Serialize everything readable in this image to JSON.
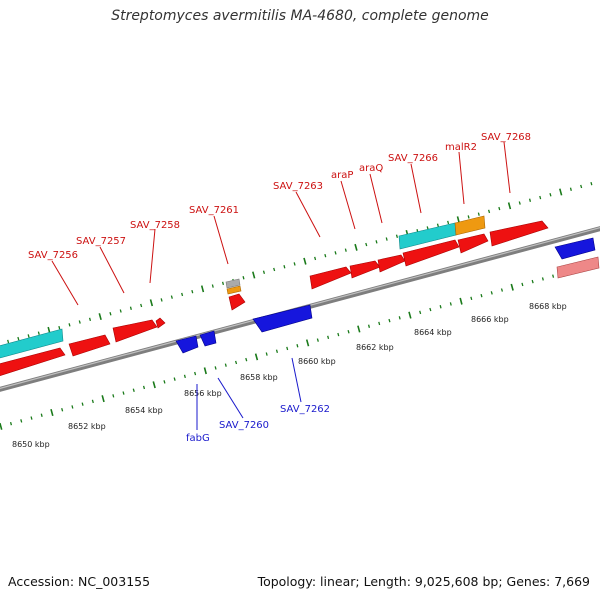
{
  "title": "Streptomyces avermitilis MA-4680, complete genome",
  "footer": {
    "accession": "Accession: NC_003155",
    "topology": "Topology: linear; Length: 9,025,608 bp; Genes: 7,669"
  },
  "colors": {
    "background": "#ffffff",
    "backbone": "#8a8a8a",
    "ticks": "#1a7a1a",
    "forward_label": "#cc1111",
    "reverse_label": "#1a1acc",
    "cds_forward": "#ee1111",
    "cds_reverse": "#1616dd",
    "cyan_feature": "#22cccc",
    "orange_feature": "#ee9911",
    "pink_feature": "#ee8888",
    "gray_feature": "#aaaaaa"
  },
  "scale_labels": [
    "8650 kbp",
    "8652 kbp",
    "8654 kbp",
    "8656 kbp",
    "8658 kbp",
    "8660 kbp",
    "8662 kbp",
    "8664 kbp",
    "8666 kbp",
    "8668 kbp"
  ],
  "forward_gene_labels": [
    "SAV_7256",
    "SAV_7257",
    "SAV_7258",
    "SAV_7261",
    "SAV_7263",
    "araP",
    "araQ",
    "SAV_7266",
    "malR2",
    "SAV_7268"
  ],
  "reverse_gene_labels": [
    "fabG",
    "SAV_7260",
    "SAV_7262"
  ]
}
